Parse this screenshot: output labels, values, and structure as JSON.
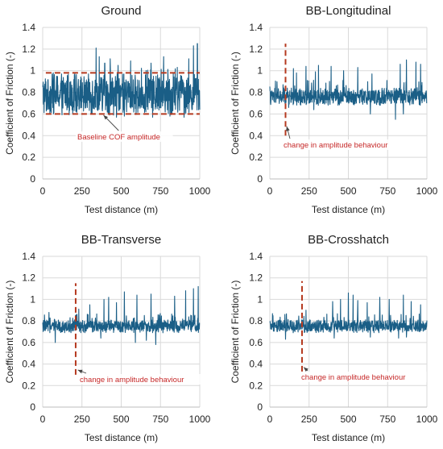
{
  "figure": {
    "panels_layout": "2x2",
    "series_color": "#1a5e86",
    "grid_color": "#d9d9d9",
    "annotation_color": "#c62828",
    "dashed_line_color": "#b5391f"
  },
  "chart_data": [
    {
      "type": "line",
      "title": "Ground",
      "xlabel": "Test distance (m)",
      "ylabel": "Coefficient of Friction (-)",
      "xlim": [
        0,
        1000
      ],
      "ylim": [
        0,
        1.4
      ],
      "xticks": [
        "0",
        "250",
        "500",
        "750",
        "1000"
      ],
      "yticks": [
        "0",
        "0.2",
        "0.4",
        "0.6",
        "0.8",
        "1",
        "1.2",
        "1.4"
      ],
      "grid": true,
      "series": [
        {
          "x_range": [
            0,
            1000
          ],
          "baseline": 0.78,
          "band": [
            0.6,
            0.98
          ],
          "peaks": [
            [
              340,
              1.21
            ],
            [
              360,
              1.13
            ],
            [
              395,
              1.07
            ],
            [
              430,
              1.11
            ],
            [
              480,
              1.05
            ],
            [
              560,
              1.09
            ],
            [
              690,
              1.07
            ],
            [
              770,
              1.13
            ],
            [
              810,
              1.05
            ],
            [
              930,
              1.11
            ],
            [
              960,
              1.23
            ],
            [
              985,
              1.25
            ]
          ],
          "dips": [
            [
              470,
              0.57
            ],
            [
              520,
              0.58
            ],
            [
              700,
              0.57
            ],
            [
              810,
              0.58
            ],
            [
              900,
              0.57
            ]
          ]
        }
      ],
      "reference_lines": [
        {
          "orientation": "horizontal",
          "y": 0.98,
          "x_range": [
            20,
            1000
          ]
        },
        {
          "orientation": "horizontal",
          "y": 0.6,
          "x_range": [
            20,
            1000
          ]
        }
      ],
      "annotations": [
        {
          "text": "Baseline COF amplitude",
          "points_to": [
            380,
            0.6
          ]
        }
      ]
    },
    {
      "type": "line",
      "title": "BB-Longitudinal",
      "xlabel": "Test distance (m)",
      "ylabel": "Coefficient of Friction (-)",
      "xlim": [
        0,
        1000
      ],
      "ylim": [
        0,
        1.4
      ],
      "xticks": [
        "0",
        "250",
        "500",
        "750",
        "1000"
      ],
      "yticks": [
        "0",
        "0.2",
        "0.4",
        "0.6",
        "0.8",
        "1",
        "1.2",
        "1.4"
      ],
      "grid": true,
      "series": [
        {
          "x_range": [
            0,
            1000
          ],
          "baseline": 0.76,
          "band": [
            0.7,
            0.86
          ],
          "peaks": [
            [
              150,
              1.02
            ],
            [
              170,
              0.98
            ],
            [
              230,
              1.04
            ],
            [
              290,
              0.99
            ],
            [
              310,
              1.05
            ],
            [
              390,
              1.04
            ],
            [
              470,
              1.0
            ],
            [
              560,
              1.03
            ],
            [
              650,
              0.97
            ],
            [
              830,
              1.06
            ],
            [
              870,
              1.1
            ],
            [
              930,
              1.08
            ],
            [
              960,
              1.06
            ]
          ],
          "dips": [
            [
              120,
              0.66
            ],
            [
              280,
              0.64
            ],
            [
              640,
              0.6
            ],
            [
              800,
              0.55
            ],
            [
              850,
              0.6
            ]
          ]
        }
      ],
      "reference_lines": [
        {
          "orientation": "vertical",
          "x": 100,
          "y_range": [
            0.4,
            1.25
          ]
        }
      ],
      "annotations": [
        {
          "text": "change in amplitude behaviour",
          "points_to": [
            105,
            0.5
          ]
        }
      ]
    },
    {
      "type": "line",
      "title": "BB-Transverse",
      "xlabel": "Test distance (m)",
      "ylabel": "Coefficient of Friction (-)",
      "xlim": [
        0,
        1000
      ],
      "ylim": [
        0,
        1.4
      ],
      "xticks": [
        "0",
        "250",
        "500",
        "750",
        "1000"
      ],
      "yticks": [
        "0",
        "0.2",
        "0.4",
        "0.6",
        "0.8",
        "1",
        "1.2",
        "1.4"
      ],
      "grid": true,
      "series": [
        {
          "x_range": [
            0,
            1000
          ],
          "baseline": 0.75,
          "band": [
            0.69,
            0.81
          ],
          "peaks": [
            [
              40,
              0.88
            ],
            [
              230,
              0.91
            ],
            [
              300,
              0.95
            ],
            [
              390,
              1.0
            ],
            [
              420,
              1.02
            ],
            [
              470,
              0.97
            ],
            [
              520,
              1.07
            ],
            [
              600,
              1.04
            ],
            [
              690,
              1.05
            ],
            [
              720,
              0.98
            ],
            [
              840,
              1.03
            ],
            [
              910,
              1.08
            ],
            [
              960,
              1.1
            ],
            [
              990,
              1.12
            ]
          ],
          "dips": [
            [
              80,
              0.6
            ],
            [
              370,
              0.64
            ],
            [
              590,
              0.6
            ],
            [
              660,
              0.62
            ],
            [
              720,
              0.58
            ]
          ]
        }
      ],
      "reference_lines": [
        {
          "orientation": "vertical",
          "x": 210,
          "y_range": [
            0.3,
            1.15
          ]
        }
      ],
      "annotations": [
        {
          "text": "change in amplitude behaviour",
          "points_to": [
            214,
            0.35
          ]
        }
      ]
    },
    {
      "type": "line",
      "title": "BB-Crosshatch",
      "xlabel": "Test distance (m)",
      "ylabel": "Coefficient of Friction (-)",
      "xlim": [
        0,
        1000
      ],
      "ylim": [
        0,
        1.4
      ],
      "xticks": [
        "0",
        "250",
        "500",
        "750",
        "1000"
      ],
      "yticks": [
        "0",
        "0.2",
        "0.4",
        "0.6",
        "0.8",
        "1",
        "1.2",
        "1.4"
      ],
      "grid": true,
      "series": [
        {
          "x_range": [
            0,
            1000
          ],
          "baseline": 0.75,
          "band": [
            0.69,
            0.81
          ],
          "peaks": [
            [
              20,
              0.85
            ],
            [
              230,
              0.9
            ],
            [
              400,
              0.98
            ],
            [
              450,
              1.0
            ],
            [
              500,
              1.06
            ],
            [
              530,
              1.04
            ],
            [
              560,
              0.99
            ],
            [
              620,
              0.97
            ],
            [
              700,
              1.02
            ],
            [
              760,
              1.0
            ],
            [
              850,
              1.04
            ],
            [
              900,
              0.98
            ],
            [
              960,
              0.95
            ]
          ],
          "dips": [
            [
              100,
              0.63
            ],
            [
              410,
              0.64
            ],
            [
              640,
              0.65
            ],
            [
              820,
              0.64
            ],
            [
              870,
              0.65
            ]
          ]
        }
      ],
      "reference_lines": [
        {
          "orientation": "vertical",
          "x": 205,
          "y_range": [
            0.33,
            1.17
          ]
        }
      ],
      "annotations": [
        {
          "text": "change in amplitude behaviour",
          "points_to": [
            208,
            0.38
          ]
        }
      ]
    }
  ]
}
